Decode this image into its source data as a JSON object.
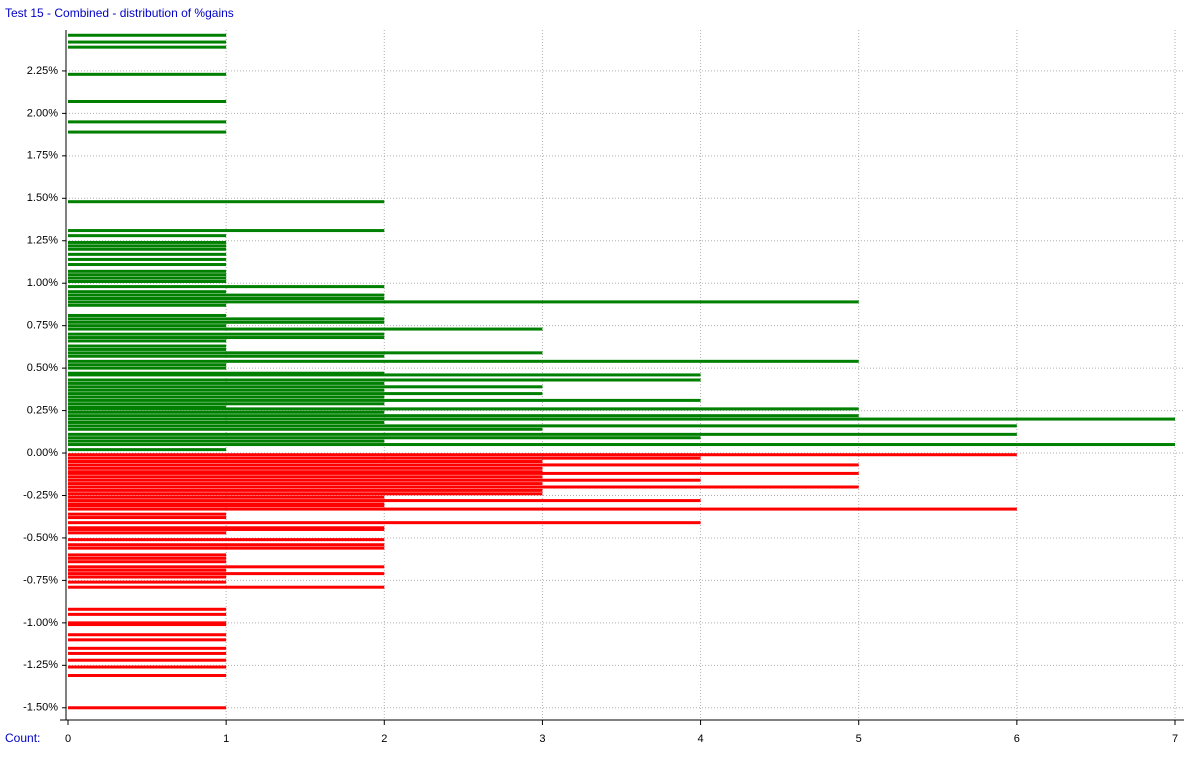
{
  "chart_data": {
    "type": "hbar-distribution",
    "title": "Test 15 - Combined - distribution of %gains",
    "x_label": "Count:",
    "xlim": [
      0,
      7
    ],
    "xticks": [
      0,
      1,
      2,
      3,
      4,
      5,
      6,
      7
    ],
    "ylim": [
      -1.572,
      2.491
    ],
    "yticks": [
      {
        "value": -1.5,
        "label": "-1.50%"
      },
      {
        "value": -1.25,
        "label": "-1.25%"
      },
      {
        "value": -1.0,
        "label": "-1.00%"
      },
      {
        "value": -0.75,
        "label": "-0.75%"
      },
      {
        "value": -0.5,
        "label": "-0.50%"
      },
      {
        "value": -0.25,
        "label": "-0.25%"
      },
      {
        "value": 0,
        "label": "0.00%"
      },
      {
        "value": 0.25,
        "label": "0.25%"
      },
      {
        "value": 0.5,
        "label": "0.50%"
      },
      {
        "value": 0.75,
        "label": "0.75%"
      },
      {
        "value": 1.0,
        "label": "1.00%"
      },
      {
        "value": 1.25,
        "label": "1.25%"
      },
      {
        "value": 1.5,
        "label": "1.50%"
      },
      {
        "value": 1.75,
        "label": "1.75%"
      },
      {
        "value": 2.0,
        "label": "2.00%"
      },
      {
        "value": 2.25,
        "label": "2.25%"
      }
    ],
    "grid": true,
    "series": [
      {
        "color": "#008000",
        "y": [
          2.46,
          2.42,
          2.39,
          2.23,
          2.07,
          1.95,
          1.89,
          1.48,
          1.31,
          1.28,
          1.24,
          1.22,
          1.2,
          1.17,
          1.14,
          1.11,
          1.07,
          1.05,
          1.03,
          1.01,
          0.98,
          0.95,
          0.93,
          0.91,
          0.89,
          0.87,
          0.81,
          0.79,
          0.77,
          0.75,
          0.73,
          0.7,
          0.68,
          0.66,
          0.63,
          0.61,
          0.59,
          0.57,
          0.54,
          0.52,
          0.5,
          0.47,
          0.46,
          0.43,
          0.41,
          0.39,
          0.37,
          0.35,
          0.33,
          0.31,
          0.29,
          0.27,
          0.26,
          0.24,
          0.22,
          0.2,
          0.18,
          0.16,
          0.14,
          0.11,
          0.09,
          0.07,
          0.05,
          0.02
        ],
        "values": [
          1,
          1,
          1,
          1,
          1,
          1,
          1,
          2,
          2,
          1,
          1,
          1,
          1,
          1,
          1,
          1,
          1,
          1,
          1,
          1,
          2,
          1,
          2,
          2,
          5,
          1,
          1,
          2,
          2,
          1,
          3,
          2,
          2,
          1,
          1,
          1,
          3,
          2,
          5,
          1,
          1,
          2,
          4,
          4,
          2,
          3,
          2,
          3,
          2,
          4,
          2,
          1,
          5,
          2,
          5,
          7,
          2,
          6,
          3,
          6,
          4,
          2,
          7,
          1
        ]
      },
      {
        "color": "#ff0000",
        "y": [
          -0.01,
          -0.03,
          -0.05,
          -0.07,
          -0.09,
          -0.11,
          -0.12,
          -0.14,
          -0.16,
          -0.18,
          -0.2,
          -0.22,
          -0.24,
          -0.26,
          -0.28,
          -0.3,
          -0.31,
          -0.33,
          -0.36,
          -0.38,
          -0.41,
          -0.44,
          -0.45,
          -0.47,
          -0.51,
          -0.54,
          -0.56,
          -0.6,
          -0.62,
          -0.64,
          -0.67,
          -0.69,
          -0.71,
          -0.73,
          -0.76,
          -0.79,
          -0.92,
          -0.95,
          -1.0,
          -1.01,
          -1.07,
          -1.1,
          -1.15,
          -1.18,
          -1.22,
          -1.26,
          -1.31,
          -1.5
        ],
        "values": [
          6,
          4,
          3,
          5,
          3,
          3,
          5,
          3,
          4,
          3,
          5,
          3,
          3,
          2,
          4,
          2,
          2,
          6,
          1,
          1,
          4,
          2,
          2,
          1,
          2,
          2,
          2,
          1,
          1,
          1,
          2,
          1,
          2,
          1,
          1,
          2,
          1,
          1,
          1,
          1,
          1,
          1,
          1,
          1,
          1,
          1,
          1,
          1
        ]
      }
    ]
  }
}
